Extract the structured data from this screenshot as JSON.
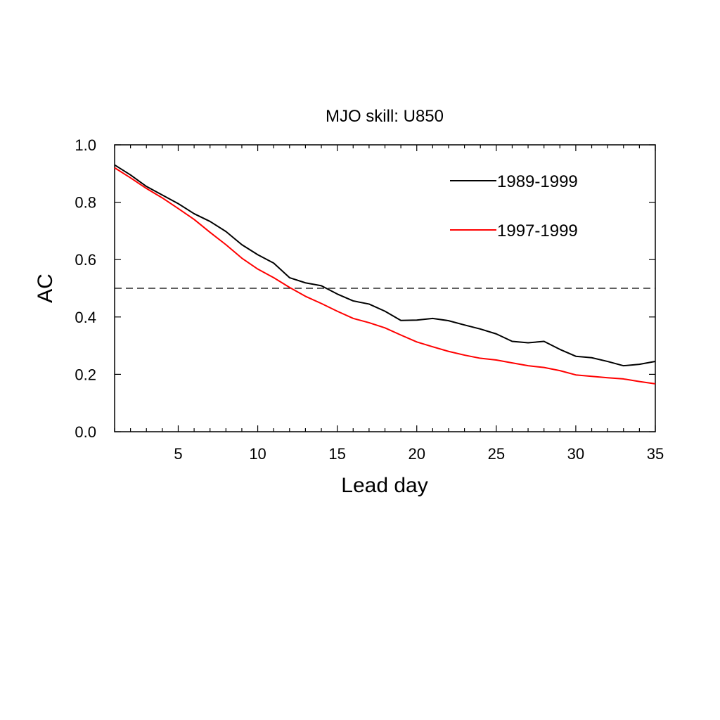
{
  "chart_data": {
    "type": "line",
    "title": "MJO skill: U850",
    "xlabel": "Lead day",
    "ylabel": "AC",
    "xlim": [
      1,
      35
    ],
    "ylim": [
      0,
      1
    ],
    "xticks": [
      5,
      10,
      15,
      20,
      25,
      30,
      35
    ],
    "yticks": [
      0.0,
      0.2,
      0.4,
      0.6,
      0.8,
      1.0
    ],
    "ytick_labels": [
      "0.0",
      "0.2",
      "0.4",
      "0.6",
      "0.8",
      "1.0"
    ],
    "grid": false,
    "legend_position": "top-right",
    "x": [
      1,
      2,
      3,
      4,
      5,
      6,
      7,
      8,
      9,
      10,
      11,
      12,
      13,
      14,
      15,
      16,
      17,
      18,
      19,
      20,
      21,
      22,
      23,
      24,
      25,
      26,
      27,
      28,
      29,
      30,
      31,
      32,
      33,
      34,
      35
    ],
    "reference_line": {
      "y": 0.5,
      "style": "dashed",
      "color": "#000000"
    },
    "series": [
      {
        "name": "1989-1999",
        "color": "#000000",
        "values": [
          0.93,
          0.895,
          0.855,
          0.825,
          0.795,
          0.76,
          0.733,
          0.698,
          0.652,
          0.617,
          0.588,
          0.537,
          0.519,
          0.509,
          0.48,
          0.456,
          0.445,
          0.42,
          0.388,
          0.389,
          0.395,
          0.387,
          0.372,
          0.358,
          0.341,
          0.315,
          0.31,
          0.315,
          0.287,
          0.263,
          0.258,
          0.245,
          0.23,
          0.235,
          0.245
        ]
      },
      {
        "name": "1997-1999",
        "color": "#ff0000",
        "values": [
          0.92,
          0.885,
          0.848,
          0.815,
          0.778,
          0.74,
          0.695,
          0.652,
          0.605,
          0.567,
          0.537,
          0.503,
          0.472,
          0.447,
          0.42,
          0.395,
          0.38,
          0.362,
          0.337,
          0.313,
          0.296,
          0.28,
          0.267,
          0.256,
          0.25,
          0.24,
          0.23,
          0.224,
          0.213,
          0.198,
          0.193,
          0.188,
          0.184,
          0.175,
          0.167
        ]
      }
    ]
  }
}
